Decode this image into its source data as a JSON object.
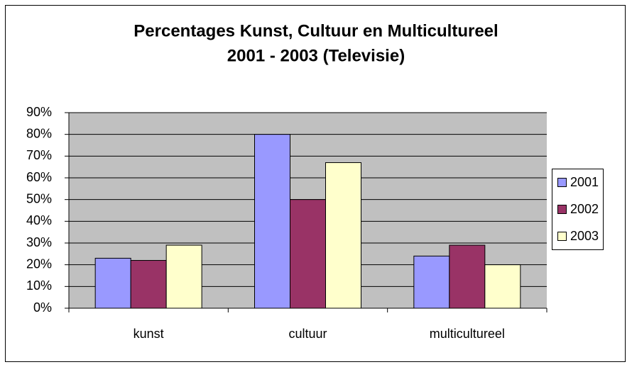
{
  "chart_data": {
    "type": "bar",
    "title": [
      "Percentages Kunst, Cultuur en Multicultureel",
      "2001 - 2003 (Televisie)"
    ],
    "categories": [
      "kunst",
      "cultuur",
      "multicultureel"
    ],
    "series": [
      {
        "name": "2001",
        "color": "#9999ff",
        "values": [
          23,
          80,
          24
        ]
      },
      {
        "name": "2002",
        "color": "#993366",
        "values": [
          22,
          50,
          29
        ]
      },
      {
        "name": "2003",
        "color": "#ffffcc",
        "values": [
          29,
          67,
          20
        ]
      }
    ],
    "ylim": [
      0,
      90
    ],
    "yticks": [
      {
        "value": 0,
        "label": "0%"
      },
      {
        "value": 10,
        "label": "10%"
      },
      {
        "value": 20,
        "label": "20%"
      },
      {
        "value": 30,
        "label": "30%"
      },
      {
        "value": 40,
        "label": "40%"
      },
      {
        "value": 50,
        "label": "50%"
      },
      {
        "value": 60,
        "label": "60%"
      },
      {
        "value": 70,
        "label": "70%"
      },
      {
        "value": 80,
        "label": "80%"
      },
      {
        "value": 90,
        "label": "90%"
      }
    ],
    "grid": true,
    "plot_background": "#c0c0c0",
    "legend": "right"
  }
}
